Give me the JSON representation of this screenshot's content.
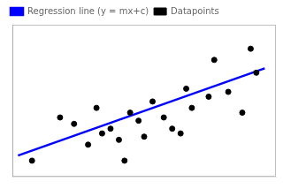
{
  "chart_data": {
    "type": "scatter",
    "series": [
      {
        "name": "Regression line (y = mx+c)",
        "type": "line",
        "color": "blue",
        "x": [
          1.0,
          9.8
        ],
        "values": [
          1.82,
          7.276
        ]
      },
      {
        "name": "Datapoints",
        "type": "scatter",
        "color": "black",
        "x": [
          1.5,
          2.5,
          3.0,
          3.5,
          3.8,
          4.0,
          4.3,
          4.6,
          5.0,
          5.3,
          5.5,
          5.8,
          6.2,
          6.5,
          7.0,
          7.2,
          7.8,
          8.0,
          8.5,
          9.0,
          9.3,
          9.5,
          4.8,
          6.8
        ],
        "values": [
          1.5,
          4.2,
          3.8,
          2.5,
          4.8,
          3.2,
          3.5,
          2.8,
          4.5,
          4.0,
          3.0,
          5.2,
          4.2,
          3.5,
          6.0,
          4.8,
          5.5,
          7.8,
          5.8,
          4.5,
          8.5,
          7.0,
          1.5,
          3.2
        ]
      }
    ],
    "xlim": [
      0.8,
      10.2
    ],
    "ylim": [
      0.5,
      10.0
    ],
    "grid": false,
    "tick_labels": false,
    "legend": "upper left"
  }
}
